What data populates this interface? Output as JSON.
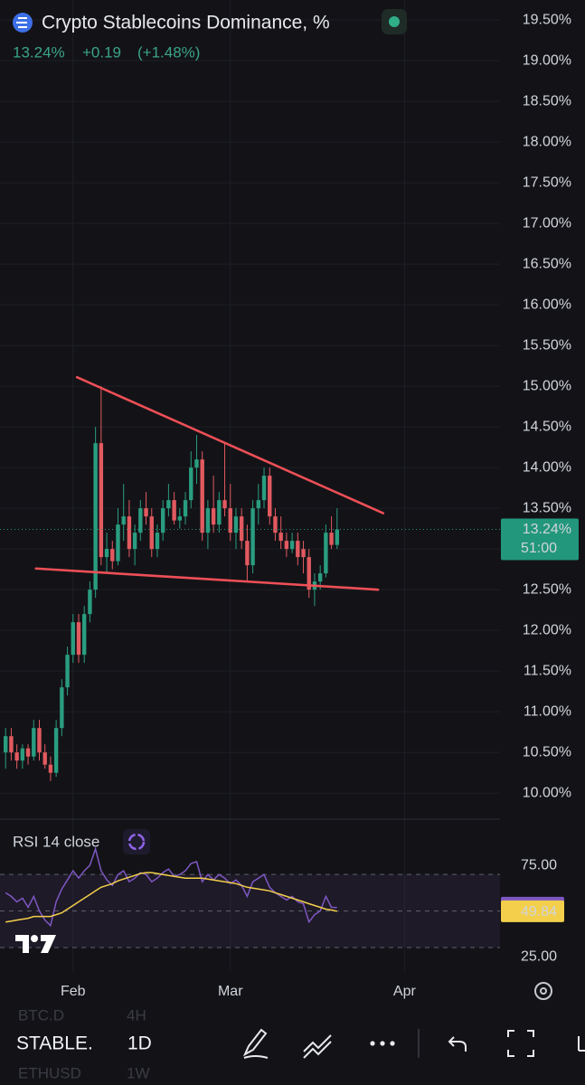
{
  "header": {
    "title": "Crypto Stablecoins Dominance, %",
    "last_price": "13.24%",
    "change": "+0.19",
    "change_pct": "(+1.48%)",
    "countdown": "51:00"
  },
  "chart_data": [
    {
      "type": "candlestick",
      "x": [
        1,
        2,
        3,
        4,
        5,
        6,
        7,
        8,
        9,
        10,
        11,
        12,
        13,
        14,
        15,
        16,
        17,
        18,
        19,
        20,
        21,
        22,
        23,
        24,
        25,
        26,
        27,
        28,
        29,
        30,
        31,
        32,
        33,
        34,
        35,
        36,
        37,
        38,
        39,
        40,
        41,
        42,
        43,
        44,
        45,
        46,
        47,
        48,
        49,
        50,
        51,
        52,
        53,
        54,
        55,
        56,
        57,
        58,
        59,
        60
      ],
      "open": [
        10.5,
        10.7,
        10.5,
        10.4,
        10.55,
        10.45,
        10.8,
        10.5,
        10.35,
        10.25,
        10.8,
        11.3,
        11.7,
        12.1,
        11.7,
        12.2,
        12.5,
        14.3,
        12.9,
        13.0,
        12.85,
        13.3,
        13.4,
        13.0,
        13.2,
        13.5,
        13.4,
        13.0,
        13.2,
        13.5,
        13.6,
        13.35,
        13.4,
        13.6,
        14.0,
        14.1,
        13.2,
        13.5,
        13.3,
        13.6,
        13.5,
        13.2,
        13.4,
        13.1,
        12.8,
        13.5,
        13.6,
        13.9,
        13.4,
        13.2,
        13.1,
        13.0,
        13.1,
        13.0,
        12.9,
        12.5,
        12.6,
        12.7,
        13.2,
        13.05
      ],
      "high": [
        10.8,
        10.8,
        10.6,
        10.6,
        10.6,
        10.9,
        10.9,
        10.6,
        10.45,
        10.9,
        11.4,
        11.8,
        12.2,
        12.2,
        12.3,
        12.6,
        14.5,
        15.0,
        13.2,
        13.1,
        13.5,
        13.8,
        13.6,
        13.3,
        13.6,
        13.7,
        13.5,
        13.3,
        13.6,
        13.8,
        13.7,
        13.5,
        13.7,
        14.2,
        14.4,
        14.2,
        13.6,
        13.9,
        13.7,
        14.3,
        13.8,
        13.5,
        13.5,
        13.3,
        13.6,
        13.8,
        14.0,
        14.0,
        13.5,
        13.4,
        13.2,
        13.2,
        13.2,
        13.1,
        13.0,
        12.7,
        12.8,
        13.3,
        13.4,
        13.5
      ],
      "low": [
        10.3,
        10.4,
        10.3,
        10.3,
        10.35,
        10.4,
        10.4,
        10.3,
        10.15,
        10.2,
        10.7,
        11.2,
        11.6,
        11.6,
        11.6,
        12.1,
        12.4,
        12.8,
        12.7,
        12.75,
        12.8,
        13.1,
        12.9,
        12.8,
        13.1,
        13.3,
        12.9,
        12.9,
        13.1,
        13.4,
        13.3,
        13.25,
        13.3,
        13.5,
        13.8,
        13.1,
        13.0,
        13.2,
        13.2,
        13.4,
        13.1,
        13.0,
        13.0,
        12.6,
        12.7,
        13.3,
        13.5,
        13.3,
        13.1,
        13.0,
        12.9,
        12.95,
        12.8,
        12.7,
        12.4,
        12.3,
        12.5,
        12.65,
        13.0,
        13.0
      ],
      "close": [
        10.7,
        10.5,
        10.4,
        10.55,
        10.45,
        10.8,
        10.5,
        10.35,
        10.25,
        10.8,
        11.3,
        11.7,
        12.1,
        11.7,
        12.2,
        12.5,
        14.3,
        12.9,
        13.0,
        12.85,
        13.3,
        13.4,
        13.0,
        13.2,
        13.5,
        13.4,
        13.0,
        13.2,
        13.5,
        13.6,
        13.35,
        13.4,
        13.6,
        14.0,
        14.1,
        13.2,
        13.5,
        13.3,
        13.6,
        13.5,
        13.2,
        13.4,
        13.1,
        12.8,
        13.5,
        13.6,
        13.9,
        13.4,
        13.2,
        13.1,
        13.0,
        13.1,
        12.9,
        12.9,
        12.5,
        12.6,
        12.7,
        13.2,
        13.05,
        13.24
      ],
      "up_color": "#2a9d80",
      "down_color": "#e15a60",
      "xlim": [
        0,
        89
      ],
      "xticks": [
        {
          "value": 13,
          "label": "Feb"
        },
        {
          "value": 41,
          "label": "Mar"
        },
        {
          "value": 72,
          "label": "Apr"
        }
      ],
      "ylim": [
        9.68,
        19.745
      ],
      "yticks": [
        {
          "value": 10,
          "label": "10.00%"
        },
        {
          "value": 10.5,
          "label": "10.50%"
        },
        {
          "value": 11,
          "label": "11.00%"
        },
        {
          "value": 11.5,
          "label": "11.50%"
        },
        {
          "value": 12,
          "label": "12.00%"
        },
        {
          "value": 12.5,
          "label": "12.50%"
        },
        {
          "value": 13,
          "label": "13.00%"
        },
        {
          "value": 13.5,
          "label": "13.50%"
        },
        {
          "value": 14,
          "label": "14.00%"
        },
        {
          "value": 14.5,
          "label": "14.50%"
        },
        {
          "value": 15,
          "label": "15.00%"
        },
        {
          "value": 15.5,
          "label": "15.50%"
        },
        {
          "value": 16,
          "label": "16.00%"
        },
        {
          "value": 16.5,
          "label": "16.50%"
        },
        {
          "value": 17,
          "label": "17.00%"
        },
        {
          "value": 17.5,
          "label": "17.50%"
        },
        {
          "value": 18,
          "label": "18.00%"
        },
        {
          "value": 18.5,
          "label": "18.50%"
        },
        {
          "value": 19,
          "label": "19.00%"
        },
        {
          "value": 19.5,
          "label": "19.50%"
        }
      ],
      "grid": true,
      "trendlines": [
        {
          "color": "#ee4f57",
          "x": [
            13.7,
            68.2
          ],
          "y": [
            15.11,
            13.44
          ]
        },
        {
          "color": "#ee4f57",
          "x": [
            6.4,
            67.3
          ],
          "y": [
            12.76,
            12.5
          ]
        }
      ],
      "last_price_color": "#22977b"
    },
    {
      "type": "line",
      "title": "RSI 14 close",
      "ylim": [
        16.6,
        98.3
      ],
      "yticks": [
        {
          "value": 75,
          "label": "75.00"
        },
        {
          "value": 25,
          "label": "25.00"
        }
      ],
      "band": [
        70,
        30
      ],
      "levels": [
        70,
        50,
        30
      ],
      "series": [
        {
          "color": "#7e57c2",
          "values": [
            60,
            58,
            55,
            57,
            52,
            58,
            50,
            45,
            42,
            55,
            62,
            67,
            72,
            68,
            72,
            75,
            84,
            72,
            67,
            64,
            70,
            72,
            66,
            68,
            71,
            70,
            66,
            68,
            71,
            73,
            69,
            70,
            72,
            76,
            77,
            66,
            70,
            67,
            70,
            68,
            65,
            67,
            64,
            58,
            66,
            68,
            70,
            63,
            60,
            58,
            56,
            58,
            55,
            54,
            44,
            48,
            50,
            58,
            52,
            51.84
          ]
        },
        {
          "color": "#f3cf4b",
          "values": [
            44,
            44.5,
            45,
            45.5,
            46,
            47,
            47,
            47,
            47,
            48,
            49,
            51,
            53,
            55,
            57,
            59,
            61,
            63,
            64,
            65,
            66.5,
            67.5,
            68.5,
            69.5,
            70.5,
            71,
            71,
            70.5,
            70,
            69.5,
            69,
            68.5,
            68,
            68,
            68,
            68,
            67.5,
            67,
            66.5,
            66,
            65.5,
            65,
            64,
            63,
            62.5,
            62,
            61.5,
            61,
            60,
            59,
            58,
            57,
            56,
            55,
            54,
            53,
            52,
            51,
            50.5,
            49.84
          ]
        }
      ]
    }
  ],
  "toolbar": {
    "symbol": "STABLE.",
    "interval": "1D",
    "ghost_symbol_1": "BTC.D",
    "ghost_interval_1": "4H",
    "ghost_symbol_2": "ETHUSD",
    "ghost_interval_2": "1W"
  }
}
